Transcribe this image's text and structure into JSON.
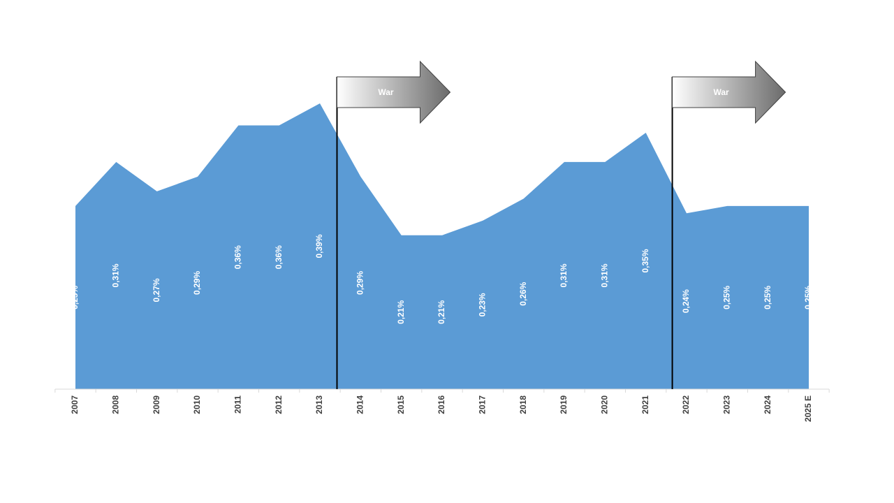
{
  "chart_data": {
    "type": "area",
    "color": "#5b9bd5",
    "categories": [
      "2007",
      "2008",
      "2009",
      "2010",
      "2011",
      "2012",
      "2013",
      "2014",
      "2015",
      "2016",
      "2017",
      "2018",
      "2019",
      "2020",
      "2021",
      "2022",
      "2023",
      "2024",
      "2025 E"
    ],
    "values": [
      0.25,
      0.31,
      0.27,
      0.29,
      0.36,
      0.36,
      0.39,
      0.29,
      0.21,
      0.21,
      0.23,
      0.26,
      0.31,
      0.31,
      0.35,
      0.24,
      0.25,
      0.25,
      0.25
    ],
    "value_labels": [
      "0,25%",
      "0,31%",
      "0,27%",
      "0,29%",
      "0,36%",
      "0,36%",
      "0,39%",
      "0,29%",
      "0,21%",
      "0,21%",
      "0,23%",
      "0,26%",
      "0,31%",
      "0,31%",
      "0,35%",
      "0,24%",
      "0,25%",
      "0,25%",
      "0,25%"
    ],
    "annotations": [
      {
        "label": "War"
      },
      {
        "label": "War"
      }
    ]
  }
}
